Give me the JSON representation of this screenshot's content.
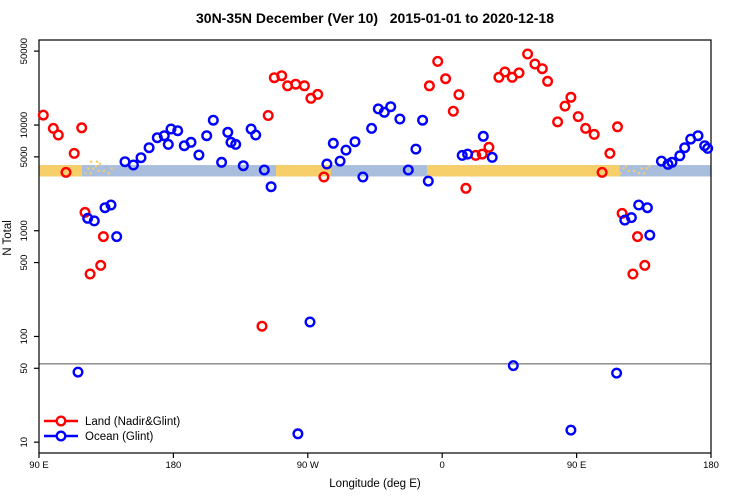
{
  "title": "30N-35N December (Ver 10)   2015-01-01 to 2020-12-18",
  "axes": {
    "x": {
      "label": "Longitude (deg E)",
      "range_deg": [
        0,
        450
      ],
      "ticks": [
        {
          "deg": 0,
          "label": "90 E"
        },
        {
          "deg": 90,
          "label": "180"
        },
        {
          "deg": 180,
          "label": "90 W"
        },
        {
          "deg": 270,
          "label": "0"
        },
        {
          "deg": 360,
          "label": "90 E"
        },
        {
          "deg": 450,
          "label": "180"
        }
      ]
    },
    "y": {
      "label": "N Total",
      "scale": "log",
      "range": [
        7.9,
        63700
      ],
      "ticks": [
        {
          "v": 10,
          "label": "10"
        },
        {
          "v": 50,
          "label": "50"
        },
        {
          "v": 100,
          "label": "100"
        },
        {
          "v": 500,
          "label": "500"
        },
        {
          "v": 1000,
          "label": "1000"
        },
        {
          "v": 5000,
          "label": "5000"
        },
        {
          "v": 10000,
          "label": "10000"
        },
        {
          "v": 50000,
          "label": "50000"
        }
      ]
    }
  },
  "reference_line": {
    "value": 55,
    "color": "#555555"
  },
  "map_strip": {
    "top_value": 4180,
    "bottom_value": 3260,
    "ocean_color": "#A9BEDC",
    "land_color": "#F6CF6B",
    "ocean_range_deg": [
      0,
      450
    ],
    "land_segments_deg": [
      [
        0,
        28.8
      ],
      [
        158.7,
        195.5
      ],
      [
        259.8,
        389
      ]
    ],
    "speckle_segments_deg": [
      [
        28.8,
        48.5
      ],
      [
        389,
        409
      ]
    ],
    "speckle_above_deg": [
      [
        34,
        42
      ]
    ]
  },
  "legend": [
    {
      "label": "Land (Nadir&Glint)",
      "color": "#FF0000"
    },
    {
      "label": "Ocean (Glint)",
      "color": "#0000FF"
    }
  ],
  "chart_data": {
    "type": "scatter",
    "x_unit": "degrees east of 90E (axis wraps 90E→180→90W→0→90E→180)",
    "y_unit": "N Total (log scale)",
    "series": [
      {
        "name": "Land (Nadir&Glint)",
        "color": "#FF0000",
        "points": [
          [
            2.9,
            12400
          ],
          [
            9.6,
            9290
          ],
          [
            12.9,
            8040
          ],
          [
            28.6,
            9420
          ],
          [
            23.6,
            5390
          ],
          [
            18.1,
            3560
          ],
          [
            30.8,
            1490
          ],
          [
            43.1,
            880
          ],
          [
            34.2,
            390
          ],
          [
            41.3,
            470
          ],
          [
            153.5,
            12300
          ],
          [
            157.6,
            28000
          ],
          [
            162.5,
            29300
          ],
          [
            166.5,
            23500
          ],
          [
            171.9,
            24300
          ],
          [
            177.7,
            23500
          ],
          [
            182.1,
            17900
          ],
          [
            186.6,
            19500
          ],
          [
            190.8,
            3220
          ],
          [
            149.3,
            125
          ],
          [
            261.4,
            23500
          ],
          [
            267.0,
            40000
          ],
          [
            272.3,
            27400
          ],
          [
            281.2,
            19400
          ],
          [
            277.4,
            13500
          ],
          [
            292.4,
            5160
          ],
          [
            296.8,
            5310
          ],
          [
            301.3,
            6150
          ],
          [
            285.9,
            2520
          ],
          [
            308.0,
            28300
          ],
          [
            312.0,
            31700
          ],
          [
            316.9,
            28300
          ],
          [
            321.4,
            31100
          ],
          [
            327.2,
            47000
          ],
          [
            332.1,
            37800
          ],
          [
            337.0,
            34100
          ],
          [
            340.6,
            25900
          ],
          [
            347.3,
            10700
          ],
          [
            352.2,
            15100
          ],
          [
            356.2,
            18300
          ],
          [
            361.1,
            12000
          ],
          [
            366.0,
            9290
          ],
          [
            371.8,
            8160
          ],
          [
            387.4,
            9620
          ],
          [
            382.3,
            5390
          ],
          [
            377.1,
            3560
          ],
          [
            390.5,
            1460
          ],
          [
            400.8,
            880
          ],
          [
            397.7,
            390
          ],
          [
            405.7,
            470
          ]
        ]
      },
      {
        "name": "Ocean (Glint)",
        "color": "#0000FF",
        "points": [
          [
            57.6,
            4500
          ],
          [
            63.2,
            4190
          ],
          [
            68.3,
            4910
          ],
          [
            73.7,
            6100
          ],
          [
            79.2,
            7580
          ],
          [
            83.9,
            7920
          ],
          [
            88.4,
            9160
          ],
          [
            92.9,
            8830
          ],
          [
            86.6,
            6560
          ],
          [
            97.3,
            6370
          ],
          [
            101.8,
            6860
          ],
          [
            107.1,
            5200
          ],
          [
            112.3,
            7920
          ],
          [
            116.7,
            11100
          ],
          [
            122.3,
            4440
          ],
          [
            126.4,
            8530
          ],
          [
            128.6,
            6860
          ],
          [
            131.7,
            6560
          ],
          [
            136.8,
            4120
          ],
          [
            142.0,
            9160
          ],
          [
            145.1,
            8040
          ],
          [
            150.9,
            3750
          ],
          [
            155.4,
            2610
          ],
          [
            32.6,
            1310
          ],
          [
            37.0,
            1240
          ],
          [
            44.2,
            1650
          ],
          [
            48.2,
            1750
          ],
          [
            52.0,
            880
          ],
          [
            26.1,
            46
          ],
          [
            181.5,
            137
          ],
          [
            173.4,
            12
          ],
          [
            192.8,
            4280
          ],
          [
            197.1,
            6710
          ],
          [
            201.6,
            4560
          ],
          [
            205.6,
            5790
          ],
          [
            211.6,
            6950
          ],
          [
            216.9,
            3220
          ],
          [
            222.7,
            9290
          ],
          [
            227.2,
            14200
          ],
          [
            231.2,
            13200
          ],
          [
            235.5,
            14900
          ],
          [
            241.7,
            11400
          ],
          [
            256.9,
            11100
          ],
          [
            252.4,
            5920
          ],
          [
            247.3,
            3750
          ],
          [
            260.7,
            2950
          ],
          [
            283.4,
            5160
          ],
          [
            287.0,
            5310
          ],
          [
            297.5,
            7820
          ],
          [
            303.5,
            4940
          ],
          [
            317.6,
            53
          ],
          [
            386.8,
            45
          ],
          [
            356.2,
            13
          ],
          [
            392.3,
            1260
          ],
          [
            396.7,
            1330
          ],
          [
            401.6,
            1750
          ],
          [
            407.4,
            1650
          ],
          [
            409.0,
            910
          ],
          [
            416.8,
            4560
          ],
          [
            421.2,
            4250
          ],
          [
            423.9,
            4440
          ],
          [
            429.1,
            5120
          ],
          [
            432.4,
            6100
          ],
          [
            436.4,
            7360
          ],
          [
            441.3,
            7920
          ],
          [
            445.8,
            6370
          ],
          [
            447.8,
            6010
          ]
        ]
      }
    ]
  }
}
